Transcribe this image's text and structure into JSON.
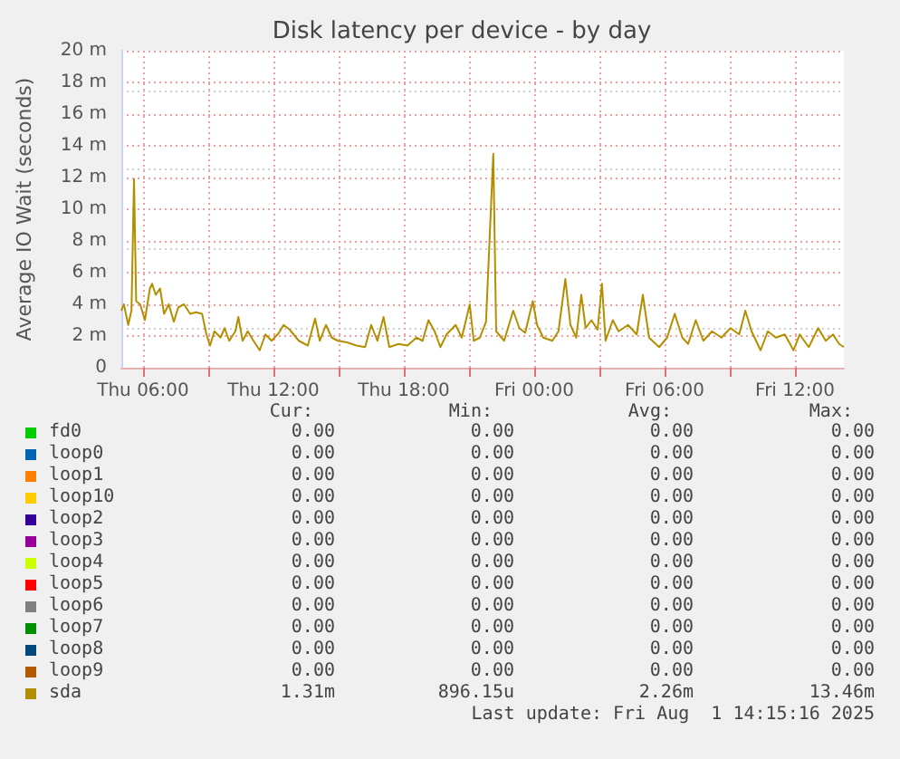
{
  "chart_data": {
    "type": "line",
    "title": "Disk latency per device - by day",
    "ylabel": "Average IO Wait (seconds)",
    "xlim": [
      "2025-07-31T05:00",
      "2025-08-01T14:15"
    ],
    "xticks": [
      {
        "value": "2025-07-31T06:00",
        "label": "Thu 06:00"
      },
      {
        "value": "2025-07-31T09:00",
        "label": null
      },
      {
        "value": "2025-07-31T12:00",
        "label": "Thu 12:00"
      },
      {
        "value": "2025-07-31T15:00",
        "label": null
      },
      {
        "value": "2025-07-31T18:00",
        "label": "Thu 18:00"
      },
      {
        "value": "2025-07-31T21:00",
        "label": null
      },
      {
        "value": "2025-08-01T00:00",
        "label": "Fri 00:00"
      },
      {
        "value": "2025-08-01T03:00",
        "label": null
      },
      {
        "value": "2025-08-01T06:00",
        "label": "Fri 06:00"
      },
      {
        "value": "2025-08-01T09:00",
        "label": null
      },
      {
        "value": "2025-08-01T12:00",
        "label": "Fri 12:00"
      }
    ],
    "ylim": [
      0,
      20
    ],
    "yticks": [
      0,
      {
        "value": 2,
        "label": "2 m"
      },
      {
        "value": 4,
        "label": "4 m"
      },
      {
        "value": 6,
        "label": "6 m"
      },
      {
        "value": 8,
        "label": "8 m"
      },
      {
        "value": 10,
        "label": "10 m"
      },
      {
        "value": 12,
        "label": "12 m"
      },
      {
        "value": 14,
        "label": "14 m"
      },
      {
        "value": 16,
        "label": "16 m"
      },
      {
        "value": 18,
        "label": "18 m"
      },
      {
        "value": 20,
        "label": "20 m"
      }
    ],
    "grid": true,
    "legend": "bottom",
    "marker": "none",
    "line_style": "solid",
    "series": [
      {
        "name": "fd0",
        "color": "#00cc00"
      },
      {
        "name": "loop0",
        "color": "#0066b3"
      },
      {
        "name": "loop1",
        "color": "#ff8000"
      },
      {
        "name": "loop10",
        "color": "#ffcc00"
      },
      {
        "name": "loop2",
        "color": "#330099"
      },
      {
        "name": "loop3",
        "color": "#990099"
      },
      {
        "name": "loop4",
        "color": "#ccff00"
      },
      {
        "name": "loop5",
        "color": "#ff0000"
      },
      {
        "name": "loop6",
        "color": "#808080"
      },
      {
        "name": "loop7",
        "color": "#008f00"
      },
      {
        "name": "loop8",
        "color": "#00487d"
      },
      {
        "name": "loop9",
        "color": "#b35a00"
      },
      {
        "name": "sda",
        "color": "#b38f00",
        "x": [
          "2025-07-31T05:00",
          "2025-07-31T05:07",
          "2025-07-31T05:19",
          "2025-07-31T05:28",
          "2025-07-31T05:35",
          "2025-07-31T05:41",
          "2025-07-31T05:52",
          "2025-07-31T06:05",
          "2025-07-31T06:19",
          "2025-07-31T06:25",
          "2025-07-31T06:35",
          "2025-07-31T06:47",
          "2025-07-31T06:58",
          "2025-07-31T07:11",
          "2025-07-31T07:25",
          "2025-07-31T07:37",
          "2025-07-31T07:53",
          "2025-07-31T08:10",
          "2025-07-31T08:26",
          "2025-07-31T08:43",
          "2025-07-31T08:55",
          "2025-07-31T09:05",
          "2025-07-31T09:17",
          "2025-07-31T09:34",
          "2025-07-31T09:45",
          "2025-07-31T09:58",
          "2025-07-31T10:15",
          "2025-07-31T10:23",
          "2025-07-31T10:35",
          "2025-07-31T10:49",
          "2025-07-31T11:05",
          "2025-07-31T11:22",
          "2025-07-31T11:38",
          "2025-07-31T11:55",
          "2025-07-31T12:15",
          "2025-07-31T12:28",
          "2025-07-31T12:45",
          "2025-07-31T13:10",
          "2025-07-31T13:35",
          "2025-07-31T13:55",
          "2025-07-31T14:08",
          "2025-07-31T14:25",
          "2025-07-31T14:41",
          "2025-07-31T14:58",
          "2025-07-31T15:23",
          "2025-07-31T15:49",
          "2025-07-31T16:13",
          "2025-07-31T16:30",
          "2025-07-31T16:47",
          "2025-07-31T17:04",
          "2025-07-31T17:20",
          "2025-07-31T17:45",
          "2025-07-31T18:10",
          "2025-07-31T18:35",
          "2025-07-31T18:52",
          "2025-07-31T19:08",
          "2025-07-31T19:25",
          "2025-07-31T19:41",
          "2025-07-31T19:58",
          "2025-07-31T20:23",
          "2025-07-31T20:40",
          "2025-07-31T21:02",
          "2025-07-31T21:13",
          "2025-07-31T21:30",
          "2025-07-31T21:47",
          "2025-07-31T22:07",
          "2025-07-31T22:15",
          "2025-07-31T22:37",
          "2025-07-31T23:02",
          "2025-07-31T23:19",
          "2025-07-31T23:35",
          "2025-07-31T23:56",
          "2025-08-01T00:08",
          "2025-08-01T00:25",
          "2025-08-01T00:50",
          "2025-08-01T01:07",
          "2025-08-01T01:26",
          "2025-08-01T01:40",
          "2025-08-01T01:56",
          "2025-08-01T02:10",
          "2025-08-01T02:22",
          "2025-08-01T02:38",
          "2025-08-01T02:55",
          "2025-08-01T03:07",
          "2025-08-01T03:17",
          "2025-08-01T03:37",
          "2025-08-01T03:53",
          "2025-08-01T04:19",
          "2025-08-01T04:43",
          "2025-08-01T05:00",
          "2025-08-01T05:17",
          "2025-08-01T05:45",
          "2025-08-01T06:07",
          "2025-08-01T06:28",
          "2025-08-01T06:49",
          "2025-08-01T07:05",
          "2025-08-01T07:26",
          "2025-08-01T07:47",
          "2025-08-01T08:11",
          "2025-08-01T08:37",
          "2025-08-01T09:02",
          "2025-08-01T09:26",
          "2025-08-01T09:43",
          "2025-08-01T10:00",
          "2025-08-01T10:25",
          "2025-08-01T10:45",
          "2025-08-01T11:07",
          "2025-08-01T11:32",
          "2025-08-01T11:56",
          "2025-08-01T12:13",
          "2025-08-01T12:38",
          "2025-08-01T13:04",
          "2025-08-01T13:25",
          "2025-08-01T13:45",
          "2025-08-01T14:02",
          "2025-08-01T14:15"
        ],
        "values": [
          3.6,
          4.0,
          2.7,
          3.6,
          11.9,
          4.2,
          4.0,
          3.0,
          5.0,
          5.3,
          4.6,
          5.0,
          3.4,
          4.0,
          2.9,
          3.8,
          4.0,
          3.4,
          3.5,
          3.4,
          2.1,
          1.4,
          2.3,
          1.9,
          2.5,
          1.7,
          2.3,
          3.2,
          1.7,
          2.3,
          1.7,
          1.1,
          2.1,
          1.7,
          2.2,
          2.7,
          2.4,
          1.7,
          1.4,
          3.1,
          1.7,
          2.7,
          1.9,
          1.7,
          1.6,
          1.4,
          1.3,
          2.7,
          1.7,
          3.2,
          1.3,
          1.5,
          1.4,
          1.9,
          1.7,
          3.0,
          2.3,
          1.3,
          2.1,
          2.7,
          1.9,
          4.0,
          1.7,
          1.9,
          2.9,
          13.5,
          2.3,
          1.7,
          3.6,
          2.5,
          2.2,
          4.2,
          2.7,
          1.9,
          1.7,
          2.3,
          5.6,
          2.7,
          1.9,
          4.6,
          2.5,
          3.0,
          2.4,
          5.3,
          1.7,
          3.0,
          2.3,
          2.7,
          2.1,
          4.6,
          1.9,
          1.3,
          1.9,
          3.4,
          1.9,
          1.5,
          3.0,
          1.7,
          2.3,
          1.9,
          2.5,
          2.1,
          3.6,
          2.3,
          1.1,
          2.3,
          1.9,
          2.1,
          1.1,
          2.1,
          1.3,
          2.5,
          1.7,
          2.1,
          1.5,
          1.3
        ]
      }
    ],
    "annotations": [
      "Cur:",
      "Min:",
      "Avg:",
      "Max:",
      "0.00",
      "0.00",
      "0.00",
      "0.00",
      "0.00",
      "0.00",
      "0.00",
      "0.00",
      "0.00",
      "0.00",
      "0.00",
      "0.00",
      "0.00",
      "0.00",
      "0.00",
      "0.00",
      "0.00",
      "0.00",
      "0.00",
      "0.00",
      "0.00",
      "0.00",
      "0.00",
      "0.00",
      "0.00",
      "0.00",
      "0.00",
      "0.00",
      "0.00",
      "0.00",
      "0.00",
      "0.00",
      "0.00",
      "0.00",
      "0.00",
      "0.00",
      "0.00",
      "0.00",
      "0.00",
      "0.00",
      "0.00",
      "0.00",
      "0.00",
      "0.00",
      "0.00",
      "0.00",
      "0.00",
      "0.00",
      "1.31m",
      "896.15u",
      "2.26m",
      "13.46m",
      "Last update: Fri Aug  1 14:15:16 2025"
    ]
  }
}
